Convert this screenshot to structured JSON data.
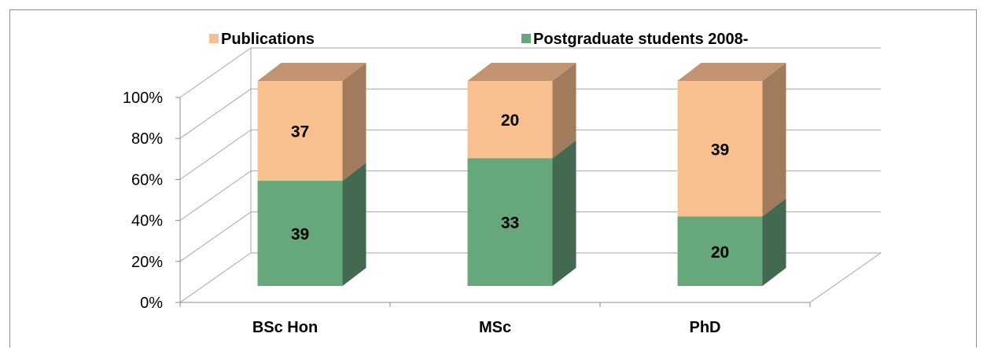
{
  "chart_data": {
    "type": "bar",
    "stacked": "percent",
    "three_d": true,
    "categories": [
      "BSc Hon",
      "MSc",
      "PhD"
    ],
    "series": [
      {
        "name": "Postgraduate students 2008-",
        "values": [
          39,
          33,
          20
        ],
        "color": "#67a77c",
        "side_color": "#436a50"
      },
      {
        "name": "Publications",
        "values": [
          37,
          20,
          39
        ],
        "color": "#f9c08f",
        "side_color": "#a27b5c",
        "top_color": "#c29371"
      }
    ],
    "legend_order": [
      "Publications",
      "Postgraduate students 2008-"
    ],
    "legend_position": "top",
    "y_tick_labels": [
      "0%",
      "20%",
      "40%",
      "60%",
      "80%",
      "100%"
    ],
    "ylim": [
      0,
      100
    ],
    "gridlines": true
  }
}
